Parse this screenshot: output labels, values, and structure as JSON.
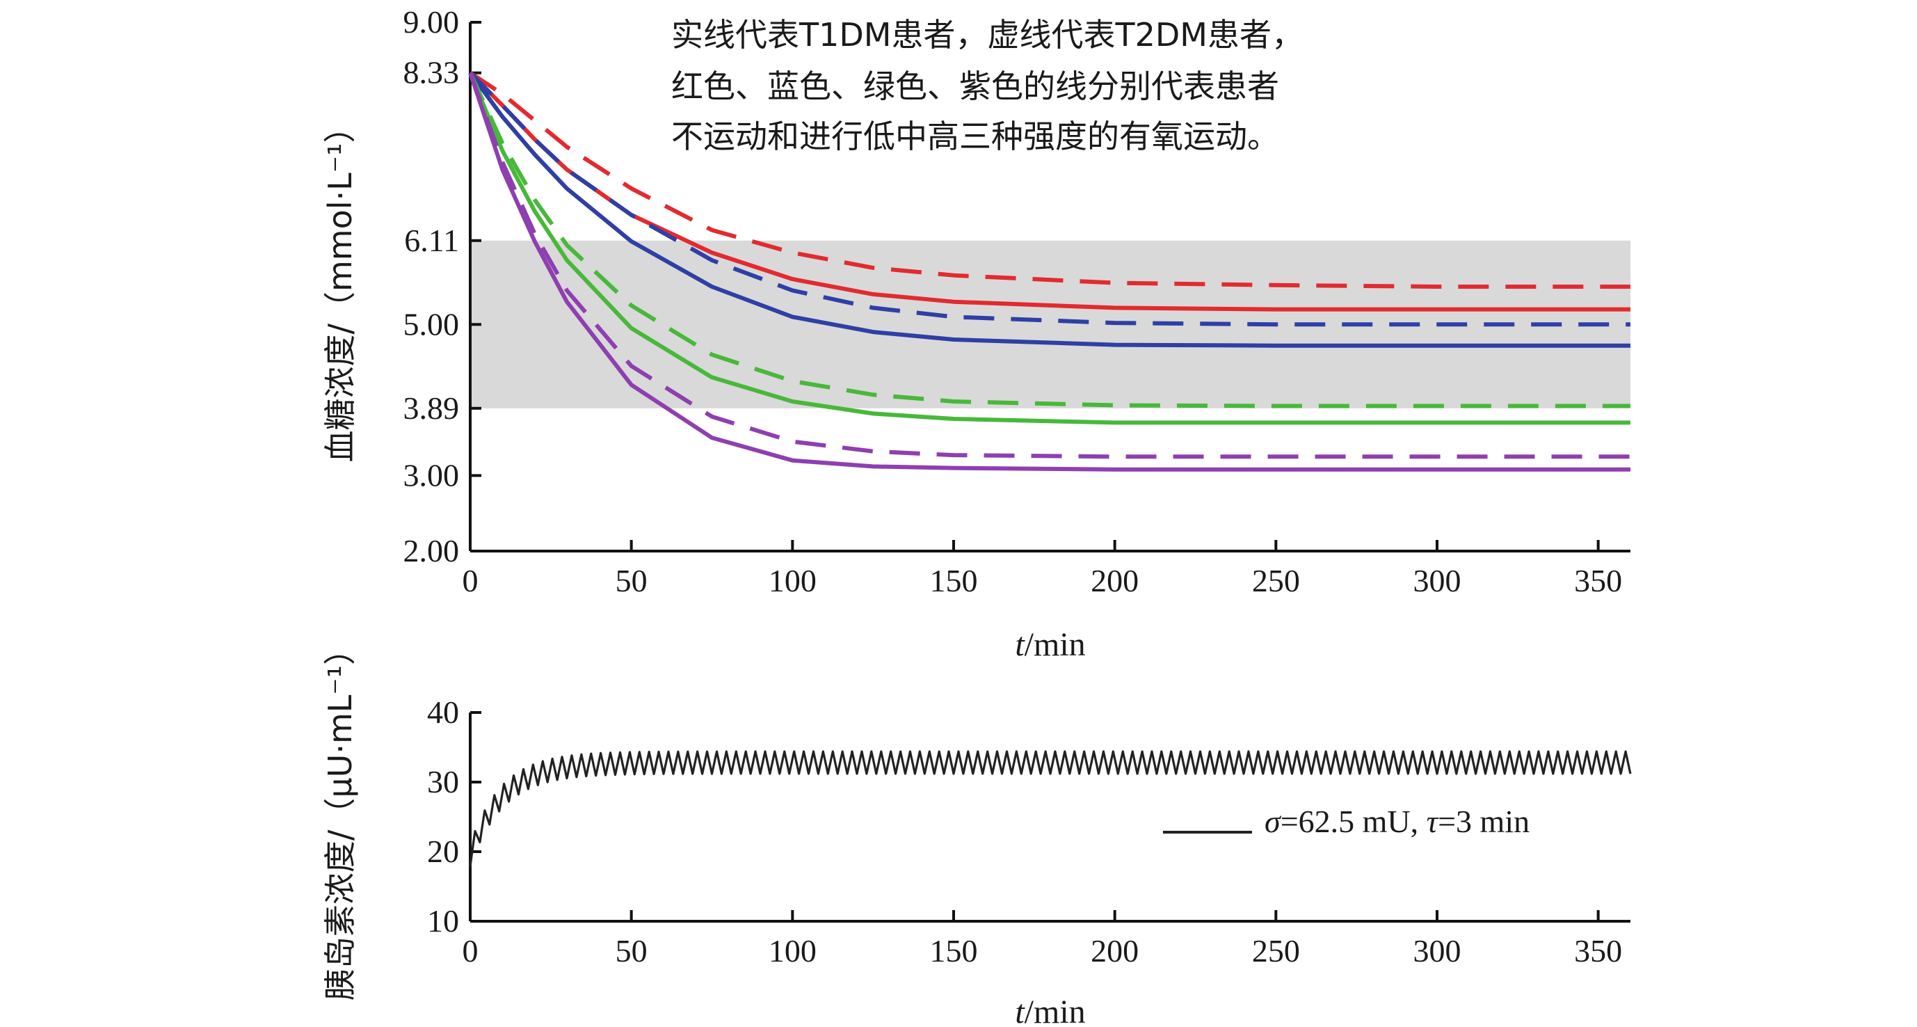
{
  "chart_data": [
    {
      "type": "line",
      "annotation": [
        "实线代表T1DM患者，虚线代表T2DM患者，",
        "红色、蓝色、绿色、紫色的线分别代表患者",
        "不运动和进行低中高三种强度的有氧运动。"
      ],
      "xlabel_italic": "t",
      "xlabel_unit": "/min",
      "ylabel": "血糖浓度/（mmol·L⁻¹）",
      "xlim": [
        0,
        360
      ],
      "ylim": [
        2.0,
        9.0
      ],
      "xticks": [
        0,
        50,
        100,
        150,
        200,
        250,
        300,
        350
      ],
      "yticks": [
        "2.00",
        "3.00",
        "3.89",
        "5.00",
        "6.11",
        "8.33",
        "9.00"
      ],
      "normal_band": [
        3.89,
        6.11
      ],
      "band_color": "#d9d9d9",
      "initial_value": 8.33,
      "series": [
        {
          "color": "#e32a2f",
          "style": "solid",
          "x": [
            0,
            10,
            20,
            30,
            50,
            75,
            100,
            125,
            150,
            200,
            250,
            300,
            360
          ],
          "y": [
            8.33,
            7.9,
            7.45,
            7.05,
            6.45,
            5.95,
            5.6,
            5.4,
            5.3,
            5.22,
            5.2,
            5.2,
            5.2
          ]
        },
        {
          "color": "#e32a2f",
          "style": "dashed",
          "x": [
            0,
            10,
            20,
            30,
            50,
            75,
            100,
            125,
            150,
            200,
            250,
            300,
            360
          ],
          "y": [
            8.33,
            8.05,
            7.7,
            7.35,
            6.8,
            6.25,
            5.95,
            5.75,
            5.65,
            5.55,
            5.52,
            5.5,
            5.5
          ]
        },
        {
          "color": "#2f3fa5",
          "style": "solid",
          "x": [
            0,
            10,
            20,
            30,
            50,
            75,
            100,
            125,
            150,
            200,
            250,
            300,
            360
          ],
          "y": [
            8.33,
            7.75,
            7.25,
            6.8,
            6.1,
            5.5,
            5.1,
            4.9,
            4.8,
            4.73,
            4.72,
            4.72,
            4.72
          ]
        },
        {
          "color": "#2f3fa5",
          "style": "dashed",
          "x": [
            0,
            10,
            20,
            30,
            50,
            75,
            100,
            125,
            150,
            200,
            250,
            300,
            360
          ],
          "y": [
            8.33,
            7.9,
            7.45,
            7.05,
            6.45,
            5.85,
            5.45,
            5.22,
            5.1,
            5.02,
            5.0,
            5.0,
            5.0
          ]
        },
        {
          "color": "#48b83a",
          "style": "solid",
          "x": [
            0,
            10,
            20,
            30,
            50,
            75,
            100,
            125,
            150,
            200,
            250,
            300,
            360
          ],
          "y": [
            8.33,
            7.3,
            6.5,
            5.85,
            4.95,
            4.3,
            3.98,
            3.82,
            3.75,
            3.7,
            3.7,
            3.7,
            3.7
          ]
        },
        {
          "color": "#48b83a",
          "style": "dashed",
          "x": [
            0,
            10,
            20,
            30,
            50,
            75,
            100,
            125,
            150,
            200,
            250,
            300,
            360
          ],
          "y": [
            8.33,
            7.4,
            6.65,
            6.05,
            5.25,
            4.6,
            4.25,
            4.07,
            3.98,
            3.93,
            3.92,
            3.92,
            3.92
          ]
        },
        {
          "color": "#8e3fb0",
          "style": "solid",
          "x": [
            0,
            10,
            20,
            30,
            50,
            75,
            100,
            125,
            150,
            200,
            250,
            300,
            360
          ],
          "y": [
            8.33,
            7.05,
            6.1,
            5.3,
            4.2,
            3.5,
            3.2,
            3.12,
            3.1,
            3.08,
            3.08,
            3.08,
            3.08
          ]
        },
        {
          "color": "#8e3fb0",
          "style": "dashed",
          "x": [
            0,
            10,
            20,
            30,
            50,
            75,
            100,
            125,
            150,
            200,
            250,
            300,
            360
          ],
          "y": [
            8.33,
            7.15,
            6.2,
            5.45,
            4.45,
            3.78,
            3.45,
            3.32,
            3.27,
            3.25,
            3.25,
            3.25,
            3.25
          ]
        }
      ]
    },
    {
      "type": "line",
      "xlabel_italic": "t",
      "xlabel_unit": "/min",
      "ylabel": "胰岛素浓度/（μU·mL⁻¹）",
      "xlim": [
        0,
        360
      ],
      "ylim": [
        10,
        40
      ],
      "xticks": [
        0,
        50,
        100,
        150,
        200,
        250,
        300,
        350
      ],
      "yticks": [
        10,
        20,
        30,
        40
      ],
      "legend": {
        "position": "right",
        "color": "#222222",
        "sigma_symbol": "σ",
        "sigma_value": "=62.5 mU, ",
        "tau_symbol": "τ",
        "tau_value": "=3 min"
      },
      "series": [
        {
          "color": "#222222",
          "oscillation_period_min": 3,
          "oscillation_amplitude": 1.6,
          "baseline_start": 19.5,
          "baseline_plateau": 32.8,
          "time_constant_min": 10
        }
      ]
    }
  ]
}
